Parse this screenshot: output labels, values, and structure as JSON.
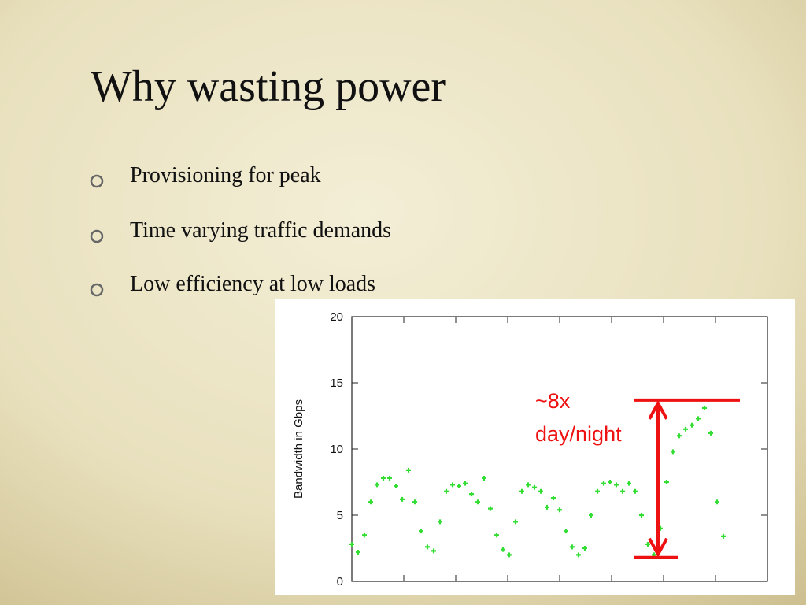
{
  "slide": {
    "title": "Why wasting power",
    "bullets": [
      "Provisioning for peak",
      "Time varying traffic demands",
      "Low efficiency at low loads"
    ]
  },
  "chart_data": {
    "type": "scatter",
    "ylabel": "Bandwidth in Gbps",
    "categories": [
      null,
      null,
      null,
      null,
      null,
      null,
      null,
      null,
      null,
      null,
      null,
      null,
      null,
      null,
      null,
      null,
      null,
      null,
      null,
      null,
      null,
      null,
      null,
      null,
      null,
      null,
      null,
      null,
      null,
      null,
      null,
      null,
      null,
      null,
      null,
      null,
      null,
      null,
      null,
      null,
      null,
      null,
      null,
      null,
      null,
      null,
      null,
      null,
      null,
      null,
      null,
      null,
      null,
      null,
      null,
      null,
      null,
      null,
      null,
      null
    ],
    "values": [
      2.8,
      2.2,
      3.5,
      6.0,
      7.3,
      7.8,
      7.8,
      7.2,
      6.2,
      8.4,
      6.0,
      3.8,
      2.6,
      2.3,
      4.5,
      6.8,
      7.3,
      7.2,
      7.4,
      6.6,
      6.0,
      7.8,
      5.5,
      3.5,
      2.4,
      2.0,
      4.5,
      6.8,
      7.3,
      7.1,
      6.8,
      5.6,
      6.3,
      5.4,
      3.8,
      2.6,
      2.0,
      2.5,
      5.0,
      6.8,
      7.4,
      7.5,
      7.3,
      6.8,
      7.4,
      6.8,
      5.0,
      2.8,
      2.0,
      4.0,
      7.5,
      9.8,
      11.0,
      11.5,
      11.8,
      12.3,
      13.1,
      11.2,
      6.0,
      3.4
    ],
    "color": "#33dd33",
    "ylim": [
      0,
      20
    ],
    "yticks": [
      0,
      5,
      10,
      15,
      20
    ],
    "annotation": {
      "lines": [
        "~8x",
        "day/night"
      ],
      "range": [
        1.8,
        13.7
      ],
      "color": "#ee1111"
    }
  }
}
